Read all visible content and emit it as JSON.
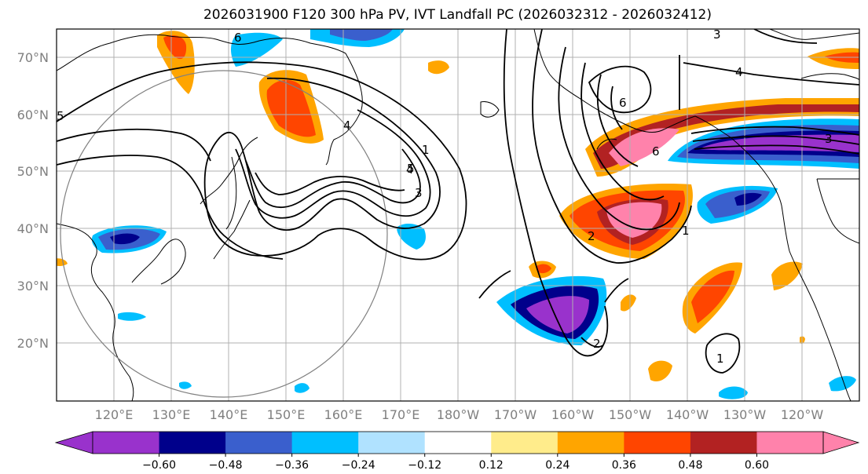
{
  "title": "2026031900 F120 300 hPa PV, IVT Landfall PC (2026032312 - 2026032412)",
  "lat_labels": [
    "70°N",
    "60°N",
    "50°N",
    "40°N",
    "30°N",
    "20°N"
  ],
  "lon_labels": [
    "120°E",
    "130°E",
    "140°E",
    "150°E",
    "160°E",
    "170°E",
    "180°W",
    "170°W",
    "160°W",
    "150°W",
    "140°W",
    "130°W",
    "120°W"
  ],
  "colorbar": {
    "colors": [
      "#9932cc",
      "#00008b",
      "#3a5fcd",
      "#00bfff",
      "#b0e2ff",
      "#ffffff",
      "#ffec8b",
      "#ffa500",
      "#ff4500",
      "#b22222",
      "#ff82ab"
    ],
    "tick_labels": [
      "−0.60",
      "−0.48",
      "−0.36",
      "−0.24",
      "−0.12",
      "0.12",
      "0.24",
      "0.36",
      "0.48",
      "0.60"
    ]
  },
  "contour_labels": [
    "4",
    "6",
    "1",
    "5",
    "4",
    "3",
    "4",
    "6",
    "6",
    "2",
    "1",
    "3",
    "3",
    "1",
    "5",
    "2"
  ]
}
